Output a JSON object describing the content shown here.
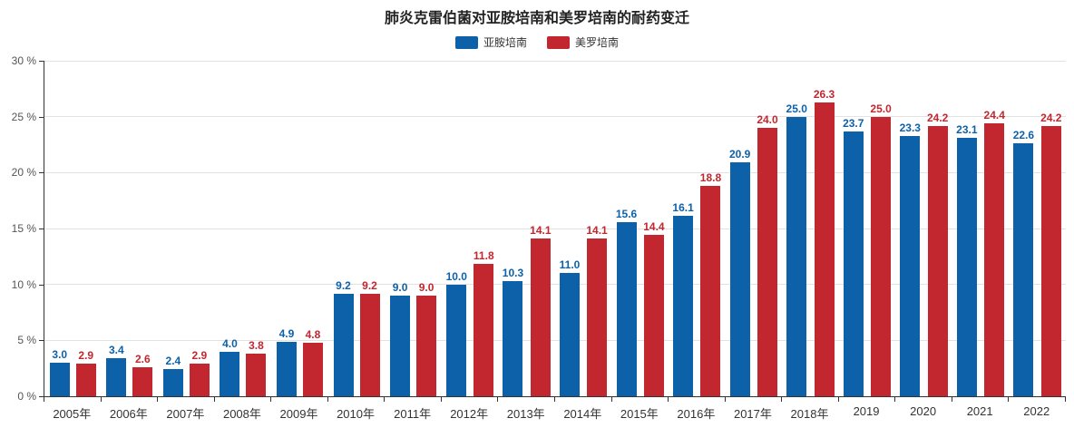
{
  "title": "肺炎克雷伯菌对亚胺培南和美罗培南的耐药变迁",
  "legend": [
    {
      "label": "亚胺培南",
      "color": "#0d61a9"
    },
    {
      "label": "美罗培南",
      "color": "#c2262e"
    }
  ],
  "colors": {
    "imipenem_blue": "#0d61a9",
    "meropenem_red": "#c2262e",
    "axis": "#333333",
    "grid": "#e2e2e2"
  },
  "chart_data": {
    "type": "bar",
    "title": "肺炎克雷伯菌对亚胺培南和美罗培南的耐药变迁",
    "categories": [
      "2005年",
      "2006年",
      "2007年",
      "2008年",
      "2009年",
      "2010年",
      "2011年",
      "2012年",
      "2013年",
      "2014年",
      "2015年",
      "2016年",
      "2017年",
      "2018年",
      "2019",
      "2020",
      "2021",
      "2022"
    ],
    "series": [
      {
        "name": "亚胺培南",
        "color": "#0d61a9",
        "values": [
          3.0,
          3.4,
          2.4,
          4.0,
          4.9,
          9.2,
          9.0,
          10.0,
          10.3,
          11.0,
          15.6,
          16.1,
          20.9,
          25.0,
          23.7,
          23.3,
          23.1,
          22.6
        ]
      },
      {
        "name": "美罗培南",
        "color": "#c2262e",
        "values": [
          2.9,
          2.6,
          2.9,
          3.8,
          4.8,
          9.2,
          9.0,
          11.8,
          14.1,
          14.1,
          14.4,
          18.8,
          24.0,
          26.3,
          25.0,
          24.2,
          24.4,
          24.2
        ]
      }
    ],
    "xlabel": "",
    "ylabel": "",
    "ylim": [
      0,
      30
    ],
    "yticks": [
      "0 %",
      "5 %",
      "10 %",
      "15 %",
      "20 %",
      "25 %",
      "30 %"
    ],
    "grid": true,
    "legend_position": "top",
    "value_labels": true
  }
}
